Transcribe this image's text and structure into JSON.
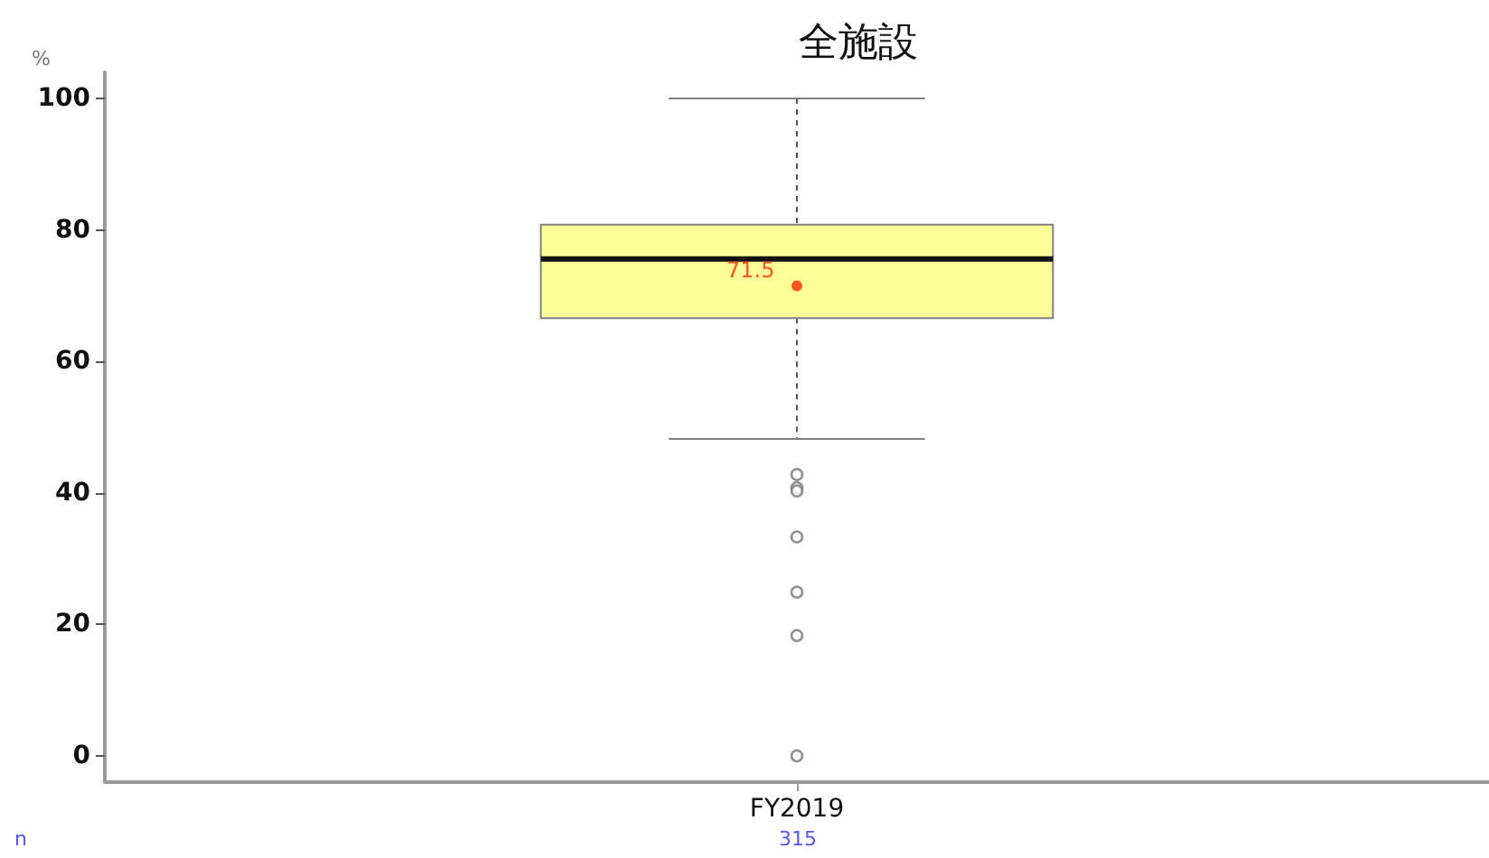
{
  "chart_data": {
    "type": "box",
    "title": "全施設",
    "ylabel": "%",
    "categories": [
      "FY2019"
    ],
    "color": "#ffff99",
    "boxes": [
      {
        "low": 48.2,
        "q1": 66.6,
        "median": 75.6,
        "q3": 80.8,
        "high": 100,
        "mean": 71.5,
        "outliers": [
          42.8,
          40.8,
          40.3,
          33.3,
          24.9,
          18.3,
          0
        ]
      }
    ],
    "ylim": [
      -4,
      104
    ],
    "yticks": [
      0,
      20,
      40,
      60,
      80,
      100
    ],
    "grid": false,
    "value_labels": [
      "71.5"
    ],
    "annotations": [
      "n",
      "315"
    ]
  }
}
